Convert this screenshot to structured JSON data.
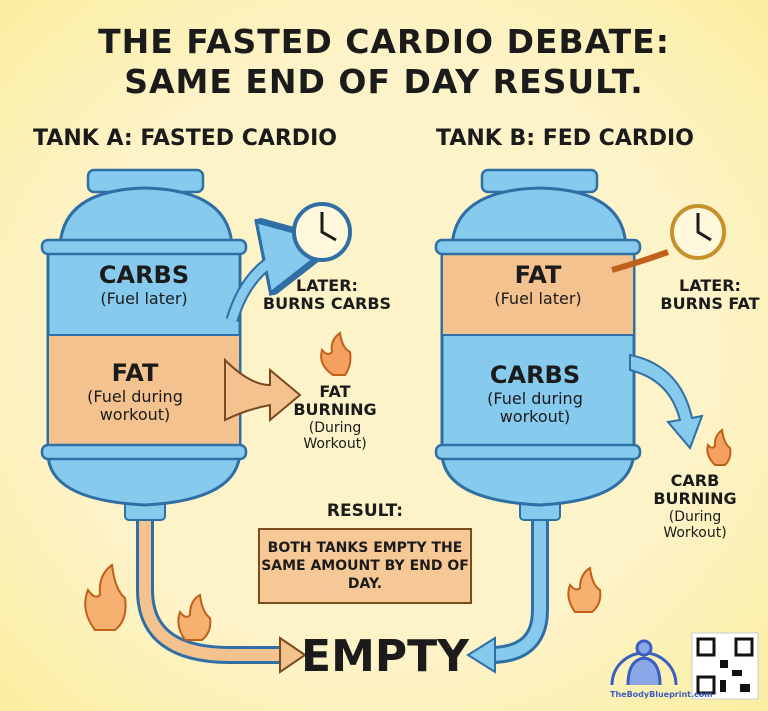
{
  "title": {
    "line1": "THE FASTED CARDIO DEBATE:",
    "line2": "SAME END OF DAY RESULT."
  },
  "tank_a": {
    "label": "TANK A: FASTED CARDIO",
    "top": {
      "name": "CARBS",
      "note": "(Fuel later)"
    },
    "bottom": {
      "name": "FAT",
      "note": "(Fuel during workout)"
    },
    "later": {
      "line1": "LATER:",
      "line2": "BURNS CARBS"
    },
    "burning": {
      "line1": "FAT",
      "line2": "BURNING",
      "note": "(During Workout)"
    }
  },
  "tank_b": {
    "label": "TANK B: FED CARDIO",
    "top": {
      "name": "FAT",
      "note": "(Fuel later)"
    },
    "bottom": {
      "name": "CARBS",
      "note": "(Fuel during workout)"
    },
    "later": {
      "line1": "LATER:",
      "line2": "BURNS FAT"
    },
    "burning": {
      "line1": "CARB",
      "line2": "BURNING",
      "note": "(During Workout)"
    }
  },
  "result": {
    "label": "RESULT:",
    "text": "BOTH TANKS EMPTY THE SAME AMOUNT BY END OF DAY."
  },
  "outcome": "EMPTY",
  "brand": "TheBodyBlueprint.com",
  "colors": {
    "carbs": "#86cbed",
    "fat": "#f4c28f",
    "outline": "#2f6fa6",
    "background": "#fdf3c8"
  }
}
